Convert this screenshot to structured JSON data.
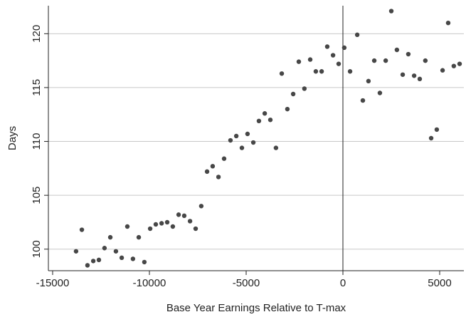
{
  "chart_data": {
    "type": "scatter",
    "x_label": "Base Year Earnings Relative to T-max",
    "y_label": "Days",
    "color": "#474747",
    "grid": true,
    "reference_line_x": 0,
    "xlim": [
      -15220,
      6250
    ],
    "ylim": [
      98.0,
      122.6
    ],
    "xticks": [
      -15000,
      -10000,
      -5000,
      0,
      5000
    ],
    "yticks": [
      100,
      105,
      110,
      115,
      120
    ],
    "x": [
      -13790,
      -13490,
      -13200,
      -12900,
      -12610,
      -12320,
      -12020,
      -11730,
      -11430,
      -11140,
      -10850,
      -10550,
      -10260,
      -9960,
      -9670,
      -9370,
      -9080,
      -8790,
      -8490,
      -8200,
      -7900,
      -7610,
      -7320,
      -7020,
      -6730,
      -6430,
      -6140,
      -5810,
      -5510,
      -5220,
      -4930,
      -4630,
      -4340,
      -4040,
      -3750,
      -3460,
      -3160,
      -2870,
      -2570,
      -2280,
      -1990,
      -1690,
      -1400,
      -1100,
      -810,
      -510,
      -220,
      70,
      370,
      740,
      1030,
      1320,
      1620,
      1910,
      2210,
      2500,
      2790,
      3090,
      3380,
      3680,
      3970,
      4260,
      4560,
      4850,
      5150,
      5440,
      5730,
      6030
    ],
    "values": [
      99.8,
      101.8,
      98.5,
      98.9,
      99.0,
      100.1,
      101.1,
      99.8,
      99.2,
      102.1,
      99.1,
      101.1,
      98.8,
      101.9,
      102.3,
      102.4,
      102.5,
      102.1,
      103.2,
      103.1,
      102.6,
      101.9,
      104.0,
      107.2,
      107.7,
      106.7,
      108.4,
      110.1,
      110.5,
      109.4,
      110.7,
      109.9,
      111.9,
      112.6,
      112.0,
      109.4,
      116.3,
      113.0,
      114.4,
      117.4,
      114.9,
      117.6,
      116.5,
      116.5,
      118.8,
      118.0,
      117.2,
      118.7,
      116.5,
      119.9,
      113.8,
      115.6,
      117.5,
      114.5,
      117.5,
      122.1,
      118.5,
      116.2,
      118.1,
      116.1,
      115.8,
      117.5,
      110.3,
      111.1,
      116.6,
      121.0,
      117.0,
      117.2
    ]
  }
}
